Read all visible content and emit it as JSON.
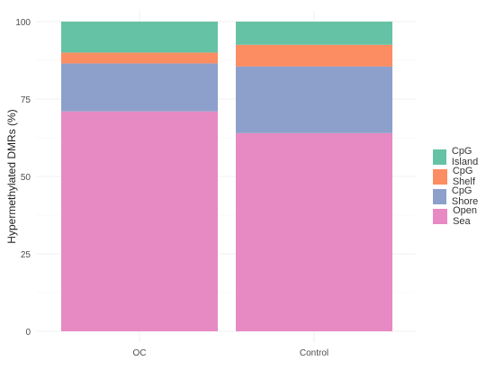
{
  "chart_data": {
    "type": "bar",
    "stacked": true,
    "categories": [
      "OC",
      "Control"
    ],
    "series": [
      {
        "name": "Open Sea",
        "color": "#e78ac3",
        "values": [
          71,
          64
        ]
      },
      {
        "name": "CpG Shore",
        "color": "#8da0cb",
        "values": [
          15.5,
          21.5
        ]
      },
      {
        "name": "CpG Shelf",
        "color": "#fc8d62",
        "values": [
          3.5,
          7
        ]
      },
      {
        "name": "CpG Island",
        "color": "#66c2a5",
        "values": [
          10,
          7.5
        ]
      }
    ],
    "legend_order": [
      "CpG Island",
      "CpG Shelf",
      "CpG Shore",
      "Open Sea"
    ],
    "yticks": [
      "0",
      "25",
      "50",
      "75",
      "100"
    ],
    "xlabel": "",
    "ylabel": "Hypermethylated DMRs (%)",
    "ylim": [
      0,
      100
    ],
    "grid": true,
    "legend_position": "right"
  }
}
